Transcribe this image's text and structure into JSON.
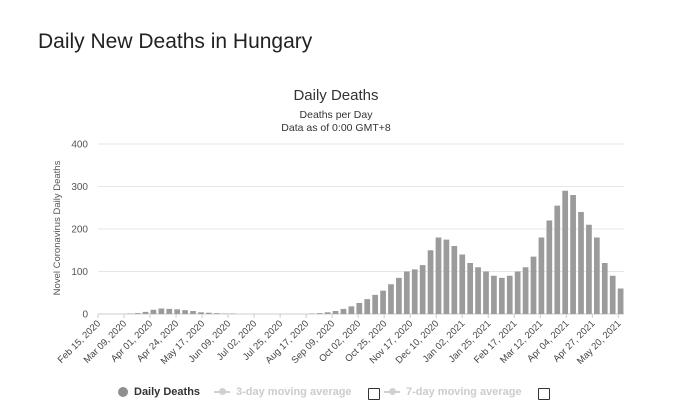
{
  "page": {
    "title": "Daily New Deaths in Hungary"
  },
  "chart_data": {
    "type": "bar",
    "title": "Daily Deaths",
    "subtitle_1": "Deaths per Day",
    "subtitle_2": "Data as of 0:00 GMT+8",
    "ylabel": "Novel Coronavirus Daily Deaths",
    "xlabel": "",
    "ylim": [
      0,
      400
    ],
    "yticks": [
      0,
      100,
      200,
      300,
      400
    ],
    "grid": true,
    "legend_position": "bottom",
    "bar_color": "#9b9b9b",
    "x_start": "Feb 15, 2020",
    "x_end": "May 25, 2021",
    "xticks": [
      "Feb 15, 2020",
      "Mar 09, 2020",
      "Apr 01, 2020",
      "Apr 24, 2020",
      "May 17, 2020",
      "Jun 09, 2020",
      "Jul 02, 2020",
      "Jul 25, 2020",
      "Aug 17, 2020",
      "Sep 09, 2020",
      "Oct 02, 2020",
      "Oct 25, 2020",
      "Nov 17, 2020",
      "Dec 10, 2020",
      "Jan 02, 2021",
      "Jan 25, 2021",
      "Feb 17, 2021",
      "Mar 12, 2021",
      "Apr 04, 2021",
      "Apr 27, 2021",
      "May 20, 2021"
    ],
    "series": [
      {
        "name": "Daily Deaths",
        "x": [
          "Feb 15, 2020",
          "Feb 22, 2020",
          "Feb 29, 2020",
          "Mar 07, 2020",
          "Mar 14, 2020",
          "Mar 21, 2020",
          "Mar 28, 2020",
          "Apr 04, 2020",
          "Apr 11, 2020",
          "Apr 18, 2020",
          "Apr 25, 2020",
          "May 02, 2020",
          "May 09, 2020",
          "May 16, 2020",
          "May 23, 2020",
          "May 30, 2020",
          "Jun 06, 2020",
          "Jun 13, 2020",
          "Jun 20, 2020",
          "Jun 27, 2020",
          "Jul 04, 2020",
          "Jul 11, 2020",
          "Jul 18, 2020",
          "Jul 25, 2020",
          "Aug 01, 2020",
          "Aug 08, 2020",
          "Aug 15, 2020",
          "Aug 22, 2020",
          "Aug 29, 2020",
          "Sep 05, 2020",
          "Sep 12, 2020",
          "Sep 19, 2020",
          "Sep 26, 2020",
          "Oct 03, 2020",
          "Oct 10, 2020",
          "Oct 17, 2020",
          "Oct 24, 2020",
          "Oct 31, 2020",
          "Nov 07, 2020",
          "Nov 14, 2020",
          "Nov 21, 2020",
          "Nov 28, 2020",
          "Dec 05, 2020",
          "Dec 12, 2020",
          "Dec 19, 2020",
          "Dec 26, 2020",
          "Jan 02, 2021",
          "Jan 09, 2021",
          "Jan 16, 2021",
          "Jan 23, 2021",
          "Jan 30, 2021",
          "Feb 06, 2021",
          "Feb 13, 2021",
          "Feb 20, 2021",
          "Feb 27, 2021",
          "Mar 06, 2021",
          "Mar 13, 2021",
          "Mar 20, 2021",
          "Mar 27, 2021",
          "Apr 03, 2021",
          "Apr 10, 2021",
          "Apr 17, 2021",
          "Apr 24, 2021",
          "May 01, 2021",
          "May 08, 2021",
          "May 15, 2021",
          "May 22, 2021"
        ],
        "values": [
          0,
          0,
          0,
          0,
          1,
          2,
          5,
          10,
          13,
          12,
          11,
          9,
          7,
          4,
          3,
          2,
          1,
          1,
          0,
          0,
          0,
          0,
          0,
          0,
          0,
          0,
          0,
          1,
          2,
          4,
          7,
          12,
          18,
          26,
          35,
          45,
          55,
          70,
          85,
          100,
          105,
          115,
          150,
          180,
          175,
          160,
          140,
          120,
          110,
          100,
          90,
          85,
          90,
          100,
          110,
          135,
          180,
          220,
          255,
          290,
          280,
          240,
          210,
          180,
          120,
          90,
          60
        ]
      }
    ]
  },
  "legend": {
    "items": [
      {
        "label": "Daily Deaths",
        "active": true
      },
      {
        "label": "3-day moving average",
        "active": false
      },
      {
        "label": "7-day moving average",
        "active": false
      }
    ]
  }
}
